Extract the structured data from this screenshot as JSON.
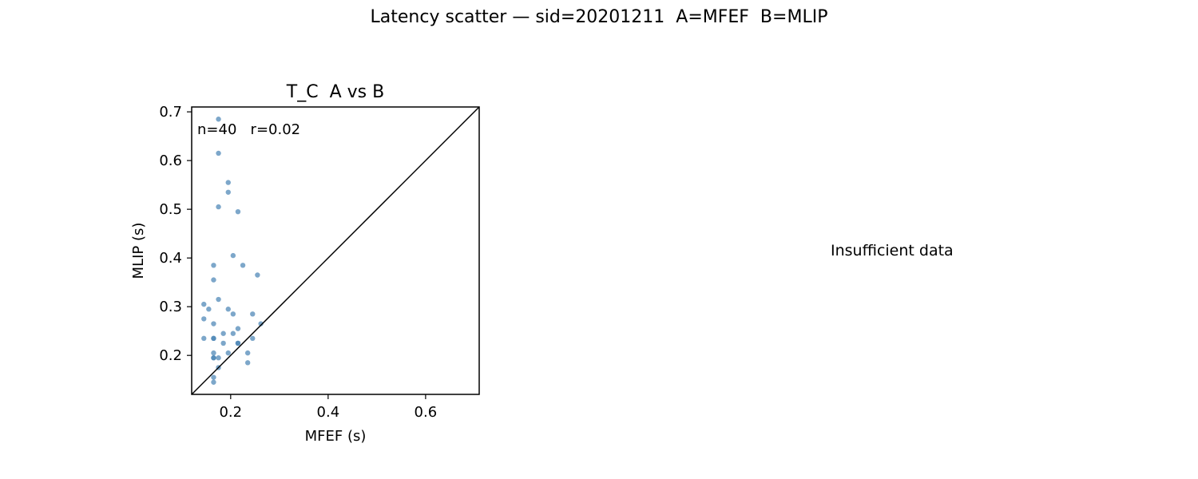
{
  "figure": {
    "title": "Latency scatter — sid=20201211  A=MFEF  B=MLIP",
    "empty_panel_text": "Insufficient data"
  },
  "chart_data": [
    {
      "type": "scatter",
      "title": "T_C  A vs B",
      "xlabel": "MFEF (s)",
      "ylabel": "MLIP (s)",
      "xlim": [
        0.12,
        0.71
      ],
      "ylim": [
        0.12,
        0.71
      ],
      "xticks": [
        0.2,
        0.4,
        0.6
      ],
      "yticks": [
        0.2,
        0.3,
        0.4,
        0.5,
        0.6,
        0.7
      ],
      "annotation": "n=40   r=0.02",
      "identity_line": true,
      "grid": false,
      "point_color": "#4682b4",
      "points": [
        [
          0.175,
          0.685
        ],
        [
          0.175,
          0.615
        ],
        [
          0.195,
          0.555
        ],
        [
          0.195,
          0.535
        ],
        [
          0.175,
          0.505
        ],
        [
          0.215,
          0.495
        ],
        [
          0.205,
          0.405
        ],
        [
          0.165,
          0.385
        ],
        [
          0.225,
          0.385
        ],
        [
          0.255,
          0.365
        ],
        [
          0.165,
          0.355
        ],
        [
          0.175,
          0.315
        ],
        [
          0.145,
          0.305
        ],
        [
          0.155,
          0.295
        ],
        [
          0.195,
          0.295
        ],
        [
          0.205,
          0.285
        ],
        [
          0.245,
          0.285
        ],
        [
          0.145,
          0.275
        ],
        [
          0.165,
          0.265
        ],
        [
          0.262,
          0.265
        ],
        [
          0.215,
          0.255
        ],
        [
          0.185,
          0.245
        ],
        [
          0.205,
          0.245
        ],
        [
          0.145,
          0.235
        ],
        [
          0.165,
          0.235
        ],
        [
          0.165,
          0.235
        ],
        [
          0.245,
          0.235
        ],
        [
          0.185,
          0.225
        ],
        [
          0.215,
          0.225
        ],
        [
          0.215,
          0.225
        ],
        [
          0.165,
          0.205
        ],
        [
          0.195,
          0.205
        ],
        [
          0.235,
          0.205
        ],
        [
          0.165,
          0.195
        ],
        [
          0.175,
          0.195
        ],
        [
          0.235,
          0.185
        ],
        [
          0.175,
          0.175
        ],
        [
          0.165,
          0.155
        ],
        [
          0.165,
          0.145
        ],
        [
          0.165,
          0.195
        ]
      ]
    }
  ]
}
